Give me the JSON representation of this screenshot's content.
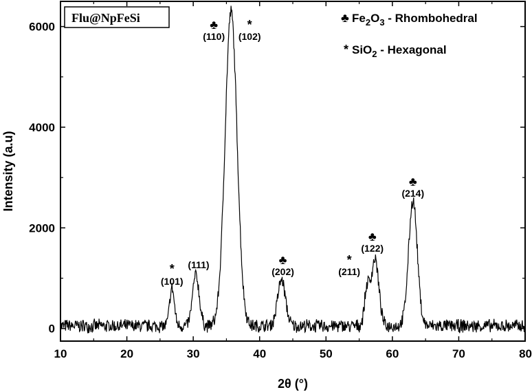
{
  "chart_data": {
    "type": "line",
    "title": "Flu@NpFeSi",
    "xlabel": "2θ (°)",
    "ylabel": "Intensity (a.u)",
    "xlim": [
      10,
      80
    ],
    "ylim": [
      -250,
      6500
    ],
    "xticks": [
      10,
      20,
      30,
      40,
      50,
      60,
      70,
      80
    ],
    "yticks": [
      0,
      2000,
      4000,
      6000
    ],
    "grid": false,
    "legend": {
      "placement": "top-right",
      "entries": [
        {
          "symbol": "♣",
          "text": "Fe2O3 - Rhombohedral"
        },
        {
          "symbol": "*",
          "text": "SiO2 - Hexagonal"
        }
      ]
    },
    "series": [
      {
        "color": "#000000",
        "noise_amplitude": 150,
        "baseline": 50,
        "peaks": [
          {
            "x": 26.8,
            "y": 800
          },
          {
            "x": 30.4,
            "y": 1060
          },
          {
            "x": 35.7,
            "y": 6300
          },
          {
            "x": 43.3,
            "y": 960
          },
          {
            "x": 56.2,
            "y": 780
          },
          {
            "x": 57.4,
            "y": 1380
          },
          {
            "x": 63.1,
            "y": 2550
          }
        ]
      }
    ],
    "annotations": [
      {
        "hkl": "(101)",
        "phase": "*",
        "x": 26.8
      },
      {
        "hkl": "(111)",
        "phase": "",
        "x": 30.4
      },
      {
        "hkl": "(110)",
        "phase": "♣",
        "x": 35.7
      },
      {
        "hkl": "(102)",
        "phase": "*",
        "x": 35.7
      },
      {
        "hkl": "(202)",
        "phase": "♣",
        "x": 43.3
      },
      {
        "hkl": "(211)",
        "phase": "*",
        "x": 56.2
      },
      {
        "hkl": "(122)",
        "phase": "♣",
        "x": 57.4
      },
      {
        "hkl": "(214)",
        "phase": "♣",
        "x": 63.1
      }
    ]
  }
}
